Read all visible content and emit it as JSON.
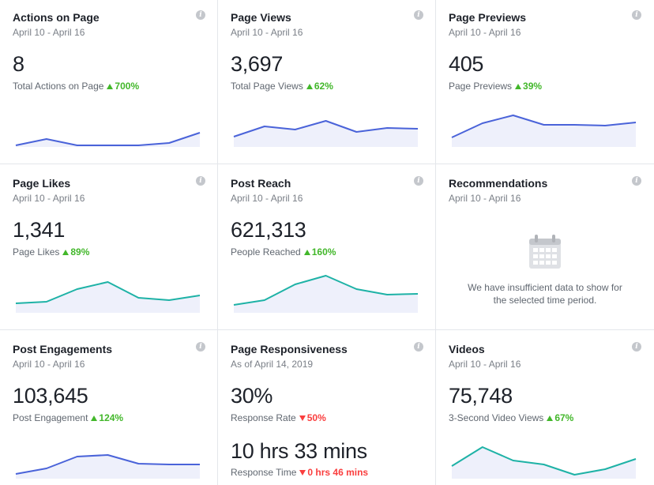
{
  "colors": {
    "blue_line": "#4a63d9",
    "teal_line": "#1eb2a6",
    "fill": "#eef0fb",
    "up": "#42b72a",
    "down": "#fa3e3e"
  },
  "cards": [
    {
      "id": "actions",
      "title": "Actions on Page",
      "date": "April 10 - April 16",
      "value": "8",
      "label": "Total Actions on Page",
      "delta": "700%",
      "dir": "up",
      "color": "blue",
      "series": [
        2,
        10,
        2,
        2,
        2,
        5,
        18
      ]
    },
    {
      "id": "views",
      "title": "Page Views",
      "date": "April 10 - April 16",
      "value": "3,697",
      "label": "Total Page Views",
      "delta": "62%",
      "dir": "up",
      "color": "blue",
      "series": [
        13,
        26,
        22,
        33,
        19,
        24,
        23
      ]
    },
    {
      "id": "previews",
      "title": "Page Previews",
      "date": "April 10 - April 16",
      "value": "405",
      "label": "Page Previews",
      "delta": "39%",
      "dir": "up",
      "color": "blue",
      "series": [
        12,
        30,
        40,
        28,
        28,
        27,
        31
      ]
    },
    {
      "id": "likes",
      "title": "Page Likes",
      "date": "April 10 - April 16",
      "value": "1,341",
      "label": "Page Likes",
      "delta": "89%",
      "dir": "up",
      "color": "teal",
      "series": [
        12,
        14,
        30,
        39,
        19,
        16,
        22
      ]
    },
    {
      "id": "reach",
      "title": "Post Reach",
      "date": "April 10 - April 16",
      "value": "621,313",
      "label": "People Reached",
      "delta": "160%",
      "dir": "up",
      "color": "teal",
      "series": [
        10,
        16,
        36,
        47,
        30,
        23,
        24
      ]
    },
    {
      "id": "recs",
      "title": "Recommendations",
      "date": "April 10 - April 16",
      "message_line1": "We have insufficient data to show for",
      "message_line2": "the selected time period."
    },
    {
      "id": "engagements",
      "title": "Post Engagements",
      "date": "April 10 - April 16",
      "value": "103,645",
      "label": "Post Engagement",
      "delta": "124%",
      "dir": "up",
      "color": "blue",
      "series": [
        6,
        13,
        28,
        30,
        19,
        18,
        18
      ]
    },
    {
      "id": "responsiveness",
      "title": "Page Responsiveness",
      "date": "As of April 14, 2019",
      "value": "30%",
      "label": "Response Rate",
      "delta": "50%",
      "dir": "down",
      "value2": "10 hrs 33 mins",
      "label2": "Response Time",
      "delta2": "0 hrs 46 mins",
      "dir2": "down"
    },
    {
      "id": "videos",
      "title": "Videos",
      "date": "April 10 - April 16",
      "value": "75,748",
      "label": "3-Second Video Views",
      "delta": "67%",
      "dir": "up",
      "color": "teal",
      "series": [
        16,
        40,
        23,
        18,
        5,
        12,
        25
      ]
    }
  ]
}
